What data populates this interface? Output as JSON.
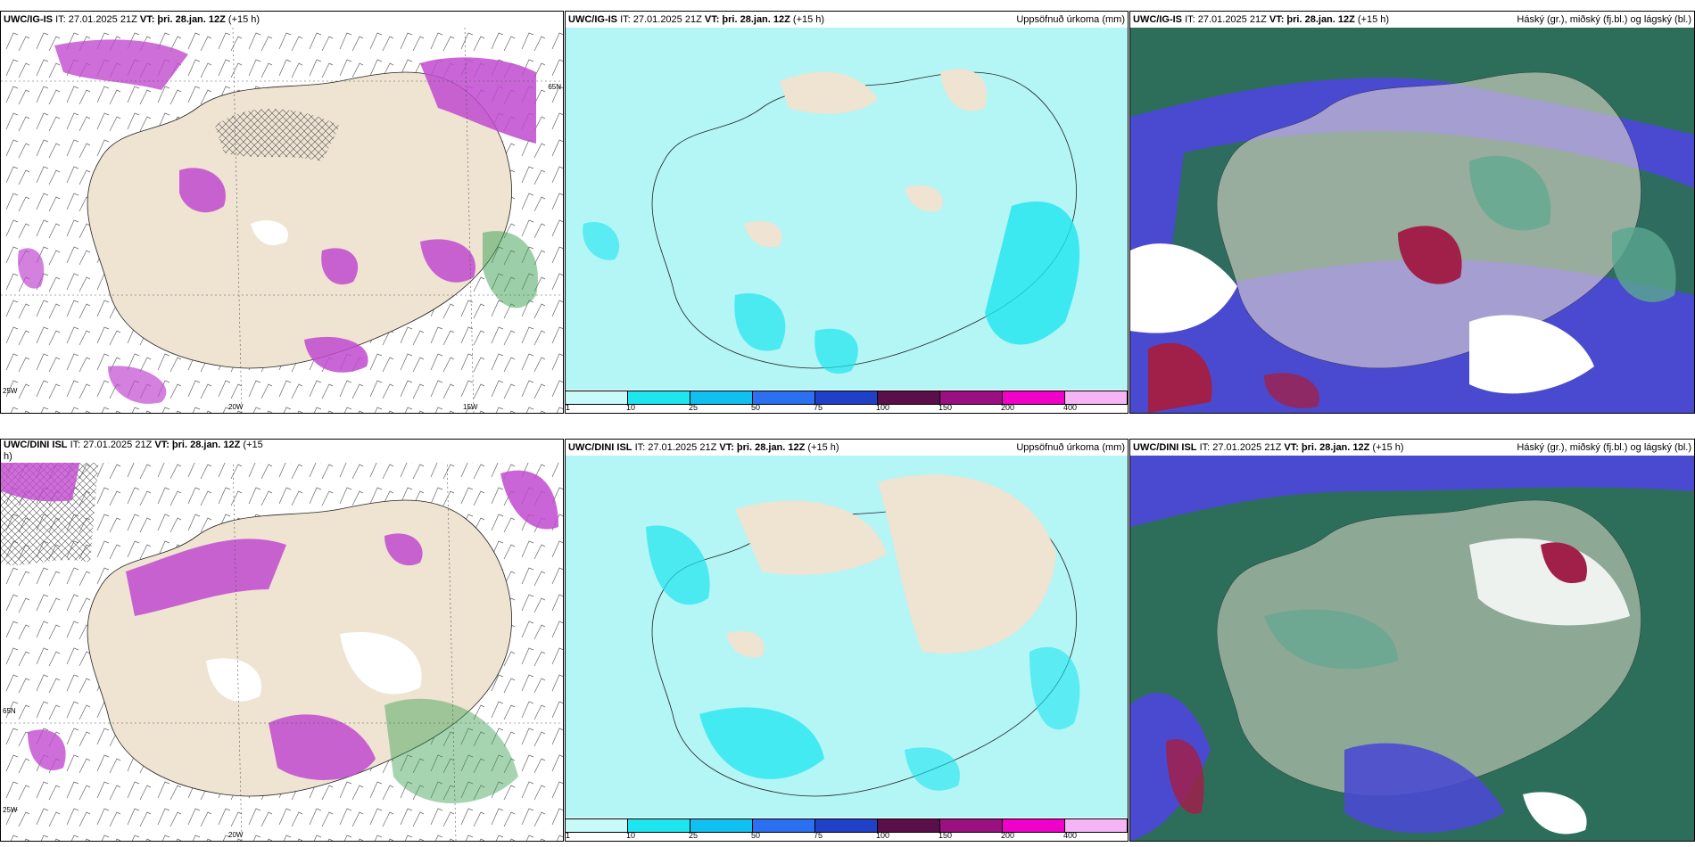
{
  "panels": [
    {
      "id": "t1",
      "title_model": "UWC/IG-IS",
      "title_it": "IT: 27.01.2025 21Z",
      "title_vt_label": "VT:",
      "title_vt": "þri. 28.jan. 12Z",
      "title_lead": "(+15 h)",
      "right_label": "",
      "axis_labels": [
        "20W",
        "15W",
        "65N",
        "25W"
      ]
    },
    {
      "id": "t2",
      "title_model": "UWC/IG-IS",
      "title_it": "IT: 27.01.2025 21Z",
      "title_vt_label": "VT:",
      "title_vt": "þri. 28.jan. 12Z",
      "title_lead": "(+15 h)",
      "right_label": "Uppsöfnuð úrkoma (mm)"
    },
    {
      "id": "t3",
      "title_model": "UWC/IG-IS",
      "title_it": "IT: 27.01.2025 21Z",
      "title_vt_label": "VT:",
      "title_vt": "þri. 28.jan. 12Z",
      "title_lead": "(+15 h)",
      "right_label": "Háský (gr.), miðský (fj.bl.) og lágský (bl.)"
    },
    {
      "id": "b1",
      "title_model": "UWC/DINI ISL",
      "title_it": "IT: 27.01.2025 21Z",
      "title_vt_label": "VT:",
      "title_vt": "þri. 28.jan. 12Z",
      "title_lead": "(+15",
      "title_wrap": "h)",
      "right_label": "",
      "axis_labels": [
        "20W",
        "65N",
        "25W"
      ]
    },
    {
      "id": "b2",
      "title_model": "UWC/DINI ISL",
      "title_it": "IT: 27.01.2025 21Z",
      "title_vt_label": "VT:",
      "title_vt": "þri. 28.jan. 12Z",
      "title_lead": "(+15 h)",
      "right_label": "Uppsöfnuð úrkoma (mm)"
    },
    {
      "id": "b3",
      "title_model": "UWC/DINI ISL",
      "title_it": "IT: 27.01.2025 21Z",
      "title_vt_label": "VT:",
      "title_vt": "þri. 28.jan. 12Z",
      "title_lead": "(+15 h)",
      "right_label": "Háský (gr.), miðský (fj.bl.) og lágský (bl.)"
    }
  ],
  "colorbar": {
    "labels": [
      "1",
      "10",
      "25",
      "50",
      "75",
      "100",
      "150",
      "200",
      "400"
    ],
    "colors": [
      "#c8fafa",
      "#1ee6f0",
      "#10c0f0",
      "#2a70f0",
      "#2040c8",
      "#5a0f4a",
      "#9a1080",
      "#f000c8",
      "#f5b4f5"
    ]
  },
  "colors": {
    "land": "#efe3d2",
    "precip_light": "#b4f5f5",
    "precip_mid": "#1ee6f0",
    "snow_purple": "#c04ad0",
    "snow_magenta": "#e060f0",
    "rain_green": "#3aa050",
    "cloud_high": "#2d6e5a",
    "cloud_mid": "#4a4ad0",
    "cloud_low": "#a0204a",
    "cloud_teal": "#5aa890"
  }
}
